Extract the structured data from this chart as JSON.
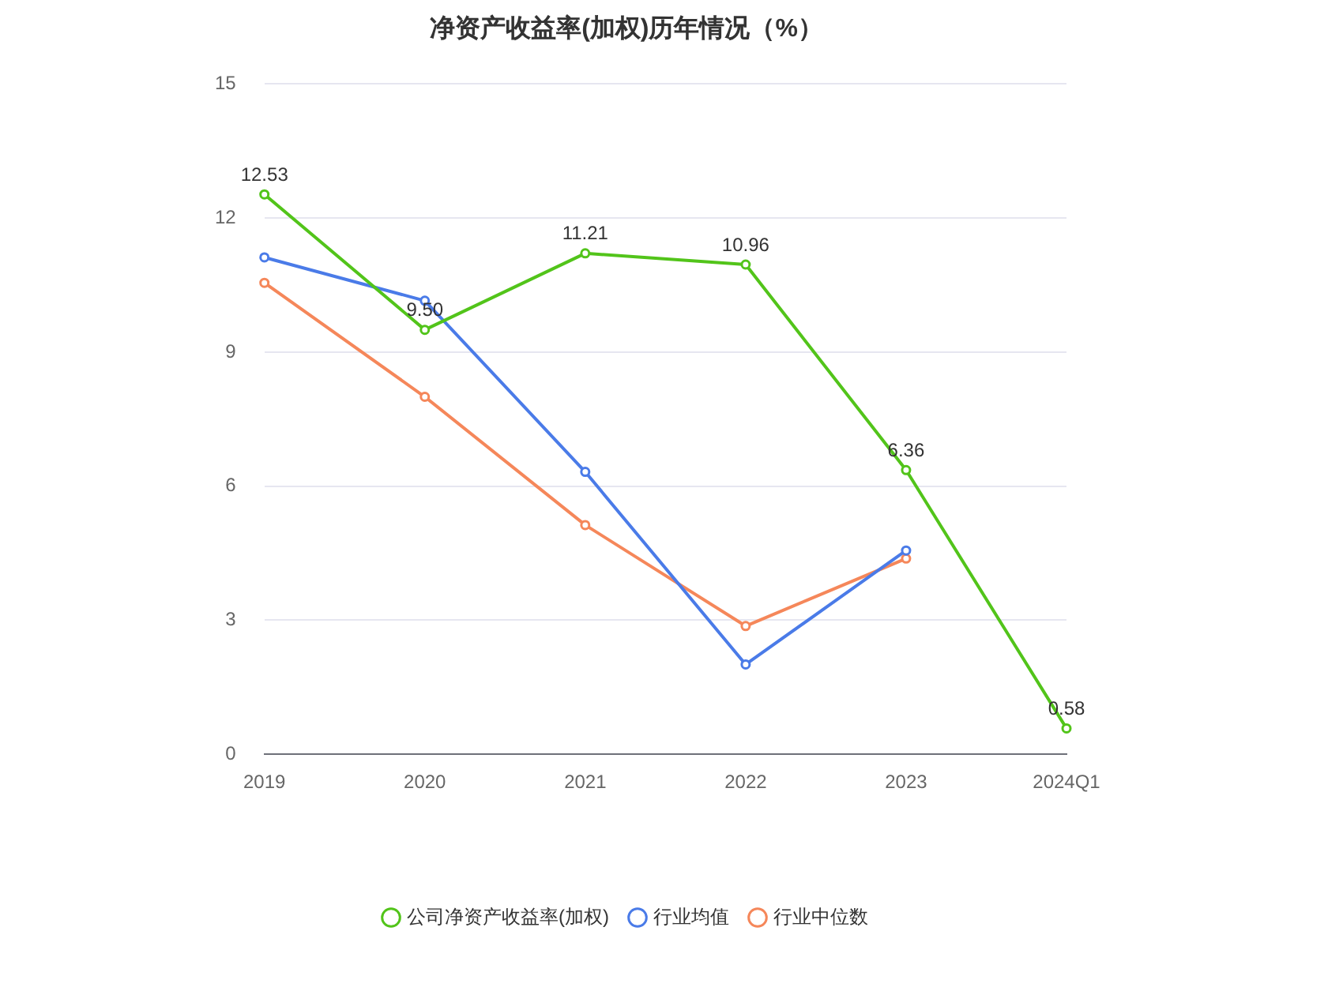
{
  "chart_data": {
    "type": "line",
    "title": "净资产收益率(加权)历年情况（%）",
    "categories": [
      "2019",
      "2020",
      "2021",
      "2022",
      "2023",
      "2024Q1"
    ],
    "series": [
      {
        "name": "公司净资产收益率(加权)",
        "color": "#52c41a",
        "values": [
          12.53,
          9.5,
          11.21,
          10.96,
          6.36,
          0.58
        ],
        "value_labels": [
          "12.53",
          "9.50",
          "11.21",
          "10.96",
          "6.36",
          "0.58"
        ]
      },
      {
        "name": "行业均值",
        "color": "#4a7be8",
        "values": [
          11.12,
          10.15,
          6.32,
          2.01,
          4.56,
          null
        ]
      },
      {
        "name": "行业中位数",
        "color": "#f5875a",
        "values": [
          10.55,
          8.0,
          5.13,
          2.87,
          4.38,
          null
        ]
      }
    ],
    "ylim": [
      0,
      15
    ],
    "yticks": [
      0,
      3,
      6,
      9,
      12,
      15
    ],
    "grid": "y",
    "legend": "bottom",
    "marker": "circle",
    "line_style": "solid"
  }
}
